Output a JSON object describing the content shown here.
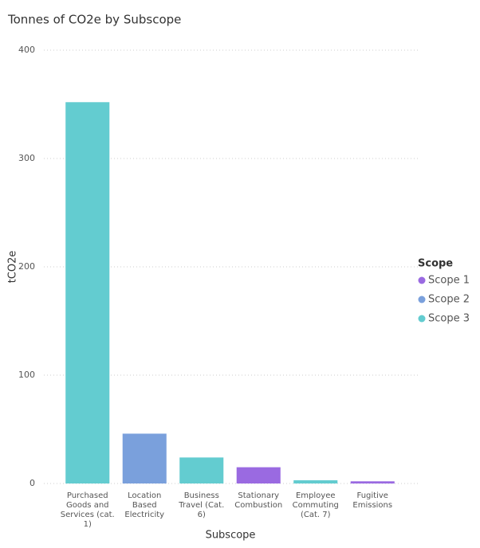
{
  "chart_data": {
    "type": "bar",
    "title": "Tonnes of CO2e by Subscope",
    "x_label": "Subscope",
    "y_label": "tCO2e",
    "categories": [
      "Purchased Goods and Services (cat. 1)",
      "Location Based Electricity",
      "Business Travel (Cat. 6)",
      "Stationary Combustion",
      "Employee Commuting (Cat. 7)",
      "Fugitive Emissions"
    ],
    "legend_title": "Scope",
    "legend": "right",
    "series": [
      {
        "name": "Scope 1",
        "color": "#9a6ae1",
        "values": [
          null,
          null,
          null,
          15,
          null,
          2
        ]
      },
      {
        "name": "Scope 2",
        "color": "#7aa0dc",
        "values": [
          null,
          46,
          null,
          null,
          null,
          null
        ]
      },
      {
        "name": "Scope 3",
        "color": "#63ccd0",
        "values": [
          352,
          null,
          24,
          null,
          3,
          null
        ]
      }
    ],
    "ylim": [
      0,
      400
    ],
    "yticks": [
      0,
      100,
      200,
      300,
      400
    ],
    "grid": true
  }
}
